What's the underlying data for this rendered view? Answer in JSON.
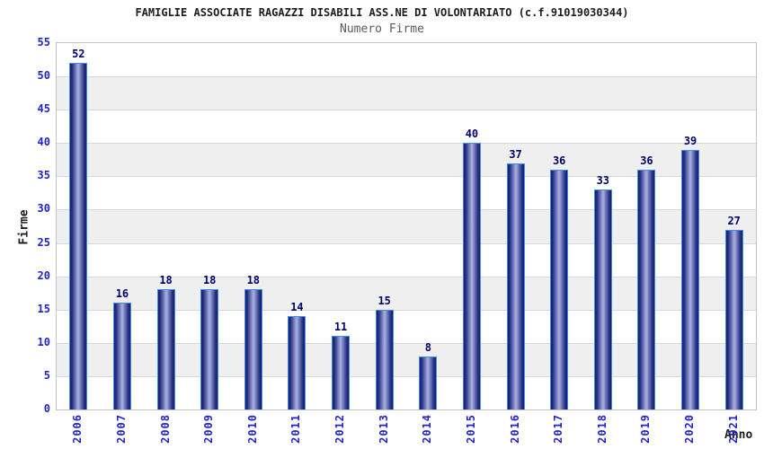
{
  "chart_data": {
    "type": "bar",
    "title": "FAMIGLIE ASSOCIATE RAGAZZI DISABILI ASS.NE DI VOLONTARIATO (c.f.91019030344)",
    "subtitle": "Numero Firme",
    "xlabel": "Anno",
    "ylabel": "Firme",
    "categories": [
      "2006",
      "2007",
      "2008",
      "2009",
      "2010",
      "2011",
      "2012",
      "2013",
      "2014",
      "2015",
      "2016",
      "2017",
      "2018",
      "2019",
      "2020",
      "2021"
    ],
    "values": [
      52,
      16,
      18,
      18,
      18,
      14,
      11,
      15,
      8,
      40,
      37,
      36,
      33,
      36,
      39,
      27
    ],
    "ylim": [
      0,
      55
    ],
    "ytick_step": 5,
    "yticks": [
      0,
      5,
      10,
      15,
      20,
      25,
      30,
      35,
      40,
      45,
      50,
      55
    ],
    "grid": true,
    "legend": false,
    "band_pattern": "alternating gray bands between gridlines starting at 5-10",
    "colors": {
      "bar_dark": "#161c6b",
      "bar_light": "#a9b2e0",
      "bar_edge": "#3f8fe8",
      "tick_label": "#2323cc",
      "value_label": "#00006b",
      "title": "#1c1c1c",
      "subtitle": "#5a5a5a",
      "band_gray": "#efefef",
      "gridline": "#d8d8d8",
      "plot_border": "#c2c2c2"
    }
  }
}
